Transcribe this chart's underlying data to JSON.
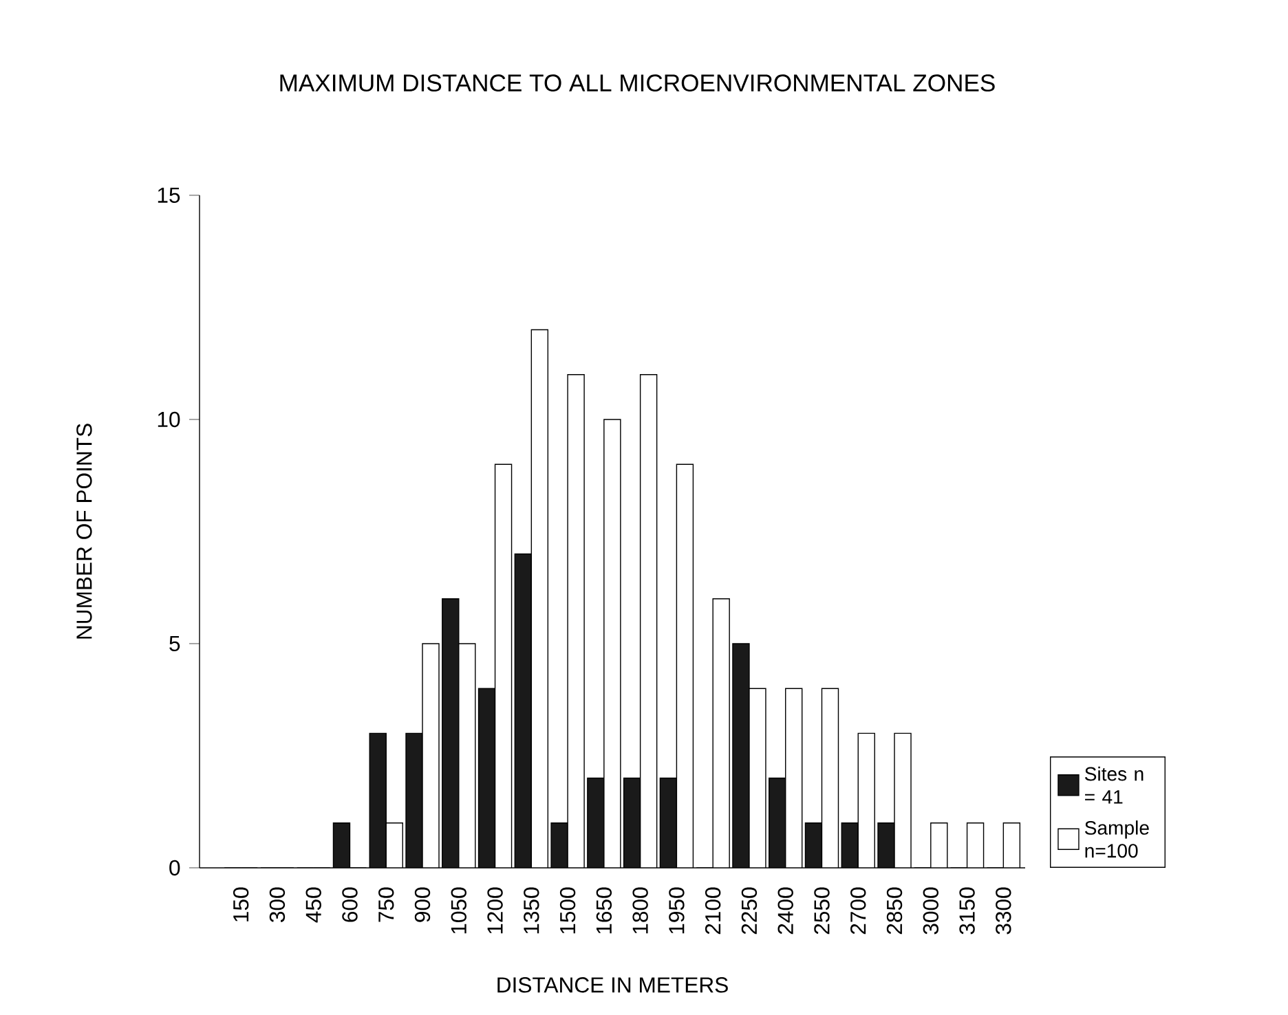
{
  "chart_data": {
    "type": "bar",
    "title": "MAXIMUM  DISTANCE TO ALL MICROENVIRONMENTAL ZONES",
    "xlabel": "DISTANCE IN METERS",
    "ylabel": "NUMBER OF POINTS",
    "categories": [
      "150",
      "300",
      "450",
      "600",
      "750",
      "900",
      "1050",
      "1200",
      "1350",
      "1500",
      "1650",
      "1800",
      "1950",
      "2100",
      "2250",
      "2400",
      "2550",
      "2700",
      "2850",
      "3000",
      "3150",
      "3300"
    ],
    "series": [
      {
        "name": "Sites n = 41",
        "color": "#1a1a1a",
        "values": [
          0,
          0,
          0,
          1,
          3,
          3,
          6,
          4,
          7,
          1,
          2,
          2,
          2,
          0,
          5,
          2,
          1,
          1,
          1,
          0,
          0,
          0
        ]
      },
      {
        "name": "Sample n=100",
        "color": "#ffffff",
        "values": [
          0,
          0,
          0,
          0,
          1,
          5,
          5,
          9,
          12,
          11,
          10,
          11,
          9,
          6,
          4,
          4,
          4,
          3,
          3,
          1,
          1,
          1
        ]
      }
    ],
    "ylim": [
      0,
      15
    ],
    "yticks": [
      0,
      5,
      10,
      15
    ],
    "legend": "bottom right"
  }
}
